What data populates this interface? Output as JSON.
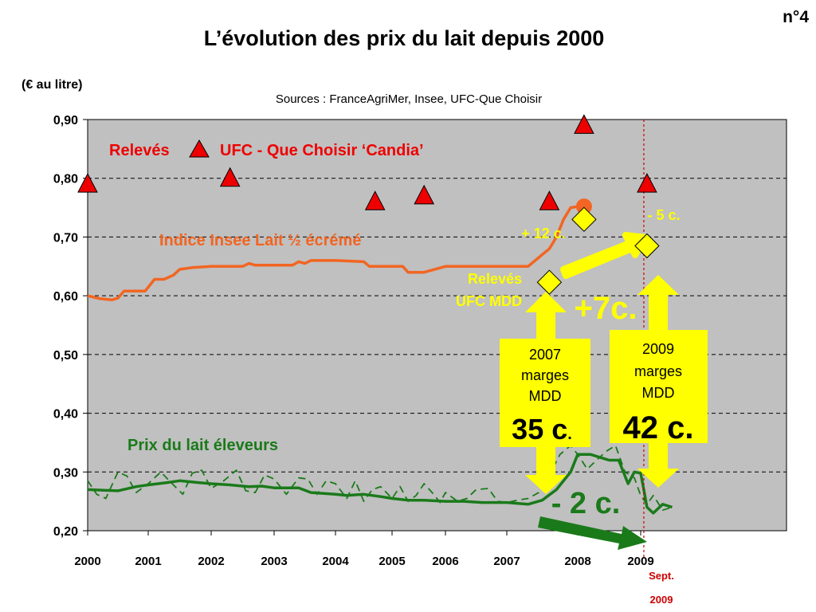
{
  "slide_number": "n°4",
  "chart_data": {
    "type": "line",
    "title": "L’évolution des prix du lait depuis 2000",
    "ylabel": "(€ au litre)",
    "source": "Sources : FranceAgriMer, Insee, UFC-Que Choisir",
    "ylim": [
      0.2,
      0.9
    ],
    "xlim": [
      2000,
      2011
    ],
    "y_ticks": [
      "0,20",
      "0,30",
      "0,40",
      "0,50",
      "0,60",
      "0,70",
      "0,80",
      "0,90"
    ],
    "y_tick_values": [
      0.2,
      0.3,
      0.4,
      0.5,
      0.6,
      0.7,
      0.8,
      0.9
    ],
    "x_ticks": [
      "2000",
      "2001",
      "2002",
      "2003",
      "2004",
      "2005",
      "2006",
      "2007",
      "2008",
      "2009"
    ],
    "x_tick_values": [
      2000,
      2001,
      2002,
      2003,
      2004,
      2005,
      2006,
      2007,
      2008,
      2009
    ],
    "grid": "horizontal dashed",
    "colors": {
      "plot_bg": "#c0c0c0",
      "insee": "#f26522",
      "eleveurs": "#1a7a1a",
      "ufc_candia": "#ee0000",
      "ufc_mdd": "#ffff00",
      "highlight_text": "#ffff00",
      "sept_line": "#cc0000"
    },
    "series": [
      {
        "name": "Indice Insee Lait ½ écrémé",
        "style": "solid",
        "x": [
          2000.0,
          2000.2,
          2000.4,
          2000.5,
          2000.6,
          2000.8,
          2000.95,
          2001.1,
          2001.25,
          2001.4,
          2001.5,
          2001.7,
          2002.0,
          2002.5,
          2002.6,
          2002.7,
          2003.0,
          2003.3,
          2003.4,
          2003.5,
          2003.6,
          2004.0,
          2004.5,
          2004.6,
          2005.0,
          2005.2,
          2005.3,
          2005.5,
          2005.6,
          2006.0,
          2006.5,
          2007.0,
          2007.3,
          2007.4,
          2007.5,
          2007.6,
          2007.7,
          2007.8,
          2007.9,
          2008.0,
          2008.1
        ],
        "y": [
          0.6,
          0.595,
          0.593,
          0.596,
          0.608,
          0.608,
          0.608,
          0.628,
          0.628,
          0.635,
          0.645,
          0.648,
          0.65,
          0.65,
          0.655,
          0.652,
          0.652,
          0.652,
          0.658,
          0.655,
          0.66,
          0.66,
          0.658,
          0.65,
          0.65,
          0.65,
          0.64,
          0.64,
          0.64,
          0.65,
          0.65,
          0.65,
          0.65,
          0.66,
          0.67,
          0.68,
          0.7,
          0.73,
          0.75,
          0.752,
          0.752
        ]
      },
      {
        "name": "Prix du lait éleveurs",
        "style": "solid",
        "x": [
          2000.0,
          2000.5,
          2000.8,
          2001.0,
          2001.3,
          2001.5,
          2001.8,
          2002.0,
          2002.3,
          2002.6,
          2002.8,
          2003.0,
          2003.4,
          2003.6,
          2004.0,
          2004.2,
          2004.5,
          2004.8,
          2005.0,
          2005.3,
          2005.6,
          2006.0,
          2006.3,
          2006.6,
          2007.0,
          2007.3,
          2007.5,
          2007.7,
          2007.9,
          2008.0,
          2008.2,
          2008.5,
          2008.65,
          2008.8,
          2008.9,
          2009.0,
          2009.05,
          2009.1,
          2009.2,
          2009.35,
          2009.5
        ],
        "y": [
          0.27,
          0.268,
          0.275,
          0.278,
          0.282,
          0.285,
          0.282,
          0.28,
          0.278,
          0.275,
          0.276,
          0.273,
          0.273,
          0.265,
          0.262,
          0.26,
          0.262,
          0.258,
          0.255,
          0.252,
          0.252,
          0.25,
          0.25,
          0.248,
          0.248,
          0.245,
          0.252,
          0.27,
          0.3,
          0.33,
          0.33,
          0.32,
          0.32,
          0.28,
          0.3,
          0.298,
          0.27,
          0.24,
          0.23,
          0.245,
          0.24
        ]
      },
      {
        "name": "Prix du lait éleveurs (mensuel)",
        "style": "dashed",
        "x": [
          2000.0,
          2000.15,
          2000.3,
          2000.5,
          2000.65,
          2000.8,
          2001.0,
          2001.2,
          2001.4,
          2001.55,
          2001.7,
          2001.85,
          2002.0,
          2002.2,
          2002.4,
          2002.55,
          2002.7,
          2002.85,
          2003.0,
          2003.2,
          2003.4,
          2003.55,
          2003.7,
          2003.85,
          2004.0,
          2004.2,
          2004.35,
          2004.5,
          2004.65,
          2004.8,
          2005.0,
          2005.15,
          2005.3,
          2005.45,
          2005.6,
          2005.75,
          2005.9,
          2006.0,
          2006.2,
          2006.35,
          2006.5,
          2006.7,
          2006.85,
          2007.0,
          2007.15,
          2007.3,
          2007.45,
          2007.6,
          2007.75,
          2007.9,
          2008.0,
          2008.15,
          2008.3,
          2008.45,
          2008.6,
          2008.75,
          2008.9,
          2009.0,
          2009.1,
          2009.2,
          2009.35,
          2009.5
        ],
        "y": [
          0.285,
          0.262,
          0.255,
          0.3,
          0.293,
          0.265,
          0.28,
          0.3,
          0.278,
          0.262,
          0.298,
          0.303,
          0.272,
          0.285,
          0.303,
          0.268,
          0.265,
          0.295,
          0.288,
          0.262,
          0.29,
          0.288,
          0.262,
          0.285,
          0.28,
          0.255,
          0.285,
          0.25,
          0.27,
          0.275,
          0.255,
          0.275,
          0.25,
          0.26,
          0.28,
          0.265,
          0.248,
          0.265,
          0.25,
          0.255,
          0.27,
          0.272,
          0.25,
          0.248,
          0.252,
          0.255,
          0.265,
          0.295,
          0.33,
          0.345,
          0.33,
          0.305,
          0.32,
          0.335,
          0.345,
          0.3,
          0.29,
          0.26,
          0.245,
          0.26,
          0.235,
          0.24
        ]
      },
      {
        "name": "Relevés UFC - Que Choisir ‘Candia’",
        "type": "scatter",
        "marker": "triangle",
        "x": [
          2000.0,
          2002.3,
          2004.7,
          2005.6,
          2007.6,
          2008.1,
          2009.1
        ],
        "y": [
          0.79,
          0.8,
          0.76,
          0.77,
          0.76,
          0.89,
          0.79
        ]
      },
      {
        "name": "Relevés UFC MDD",
        "type": "scatter",
        "marker": "diamond",
        "x": [
          2007.6,
          2008.1,
          2009.1
        ],
        "y": [
          0.623,
          0.73,
          0.685
        ]
      }
    ],
    "orange_point": {
      "x": 2008.1,
      "y": 0.752
    },
    "sept_marker_x": 2009.05,
    "annotations": {
      "legend_triangle_prefix": "Relevés",
      "legend_triangle_suffix": "UFC - Que Choisir  ‘Candia’",
      "insee_label": "Indice Insee Lait ½ écrémé",
      "eleveurs_label": "Prix du lait éleveurs",
      "mdd_label_line1": "Relevés",
      "mdd_label_line2": "UFC MDD",
      "plus12": "+ 12 c.",
      "minus5": "- 5 c.",
      "plus7": "+7c.",
      "minus2": "- 2 c.",
      "box2007": {
        "line1": "2007",
        "line2": "marges",
        "line3": "MDD",
        "value": "35 c",
        "dot": "."
      },
      "box2009": {
        "line1": "2009",
        "line2": "marges",
        "line3": "MDD",
        "value": "42 c."
      },
      "sept_line1": "Sept.",
      "sept_line2": "2009"
    }
  }
}
